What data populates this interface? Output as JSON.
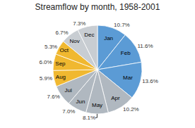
{
  "chart_data": {
    "type": "pie",
    "title": "Streamflow by month, 1958-2001",
    "categories": [
      "Jan",
      "Feb",
      "Mar",
      "Apr",
      "May",
      "Jun",
      "Jul",
      "Aug",
      "Sep",
      "Oct",
      "Nov",
      "Dec"
    ],
    "values": [
      10.7,
      11.6,
      13.6,
      10.2,
      8.1,
      7.0,
      7.6,
      5.9,
      6.0,
      5.3,
      6.7,
      7.3
    ],
    "value_labels": [
      "10.7%",
      "11.6%",
      "13.6%",
      "10.2%",
      "8.1%",
      "7.0%",
      "7.6%",
      "5.9%",
      "6.0%",
      "5.3%",
      "6.7%",
      "7.3%"
    ],
    "colors": [
      "#5b9bd5",
      "#5b9bd5",
      "#5b9bd5",
      "#b0b8c0",
      "#b0b8c0",
      "#b0b8c0",
      "#b0b8c0",
      "#f0b830",
      "#f0b830",
      "#f0b830",
      "#c8cdd2",
      "#c8cdd2"
    ],
    "data_labels": true
  }
}
